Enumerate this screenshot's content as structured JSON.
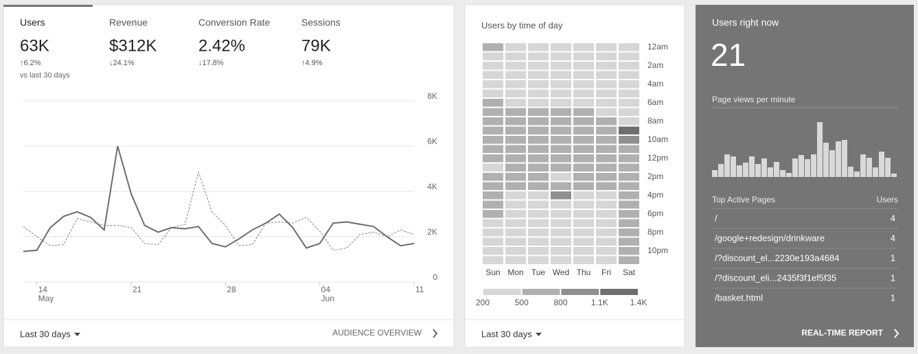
{
  "overview": {
    "tabs": [
      {
        "label": "Users",
        "value": "63K",
        "change": "↑6.2%"
      },
      {
        "label": "Revenue",
        "value": "$312K",
        "change": "↓24.1%"
      },
      {
        "label": "Conversion Rate",
        "value": "2.42%",
        "change": "↓17.8%"
      },
      {
        "label": "Sessions",
        "value": "79K",
        "change": "↑4.9%"
      }
    ],
    "comparison": "vs last 30 days",
    "chart": {
      "type": "line",
      "categories": [
        null,
        "14",
        null,
        null,
        null,
        null,
        null,
        null,
        "21",
        null,
        null,
        null,
        null,
        null,
        null,
        "28",
        null,
        null,
        null,
        null,
        null,
        null,
        "04",
        null,
        null,
        null,
        null,
        null,
        null,
        "11"
      ],
      "month_labels": [
        null,
        "May",
        null,
        null,
        null,
        null,
        null,
        null,
        null,
        null,
        null,
        null,
        null,
        null,
        null,
        null,
        null,
        null,
        null,
        null,
        null,
        null,
        "Jun",
        null,
        null,
        null,
        null,
        null,
        null,
        null
      ],
      "series": [
        {
          "color": "#6b6b6b",
          "style": "solid",
          "values": [
            1350,
            1400,
            2400,
            2900,
            3100,
            2850,
            2300,
            6000,
            3900,
            2500,
            2200,
            2400,
            2350,
            2450,
            1700,
            1550,
            1900,
            2300,
            2600,
            3000,
            2400,
            1500,
            1700,
            2600,
            2650,
            2550,
            2450,
            2000,
            1600,
            1700
          ]
        },
        {
          "color": "#808080",
          "style": "dashed",
          "values": [
            2450,
            2000,
            1600,
            1650,
            2800,
            2650,
            2500,
            2500,
            2400,
            1700,
            1650,
            2400,
            2550,
            4850,
            3100,
            2500,
            1600,
            1650,
            2600,
            2650,
            2600,
            2850,
            2250,
            1400,
            1500,
            2100,
            2200,
            2000,
            2300,
            2100
          ]
        }
      ],
      "ylim": [
        0,
        8000
      ],
      "yticks": [
        0,
        {
          "value": 2000,
          "label": "2K"
        },
        {
          "value": 4000,
          "label": "4K"
        },
        {
          "value": 6000,
          "label": "6K"
        },
        {
          "value": 8000,
          "label": "8K"
        }
      ],
      "grid": true
    },
    "footer": {
      "range": "Last 30 days",
      "link": "AUDIENCE OVERVIEW"
    }
  },
  "time_of_day": {
    "type": "heatmap",
    "title": "Users by time of day",
    "days": [
      "Sun",
      "Mon",
      "Tue",
      "Wed",
      "Thu",
      "Fri",
      "Sat"
    ],
    "hour_labels": [
      "12am",
      null,
      "2am",
      null,
      "4am",
      null,
      "6am",
      null,
      "8am",
      null,
      "10am",
      null,
      "12pm",
      null,
      "2pm",
      null,
      "4pm",
      null,
      "6pm",
      null,
      "8pm",
      null,
      "10pm",
      null
    ],
    "values": [
      [
        650,
        350,
        350,
        350,
        350,
        350,
        350
      ],
      [
        350,
        350,
        350,
        350,
        350,
        350,
        350
      ],
      [
        350,
        350,
        350,
        350,
        350,
        350,
        350
      ],
      [
        350,
        350,
        350,
        350,
        350,
        350,
        350
      ],
      [
        350,
        350,
        350,
        350,
        350,
        350,
        350
      ],
      [
        350,
        350,
        350,
        350,
        350,
        350,
        350
      ],
      [
        650,
        350,
        350,
        350,
        350,
        350,
        350
      ],
      [
        650,
        650,
        650,
        650,
        650,
        350,
        350
      ],
      [
        650,
        650,
        650,
        650,
        650,
        650,
        350
      ],
      [
        650,
        650,
        650,
        650,
        650,
        650,
        1250
      ],
      [
        650,
        650,
        650,
        650,
        650,
        650,
        950
      ],
      [
        650,
        650,
        650,
        650,
        650,
        650,
        650
      ],
      [
        650,
        650,
        650,
        650,
        650,
        650,
        650
      ],
      [
        350,
        650,
        650,
        650,
        650,
        650,
        650
      ],
      [
        650,
        650,
        650,
        350,
        650,
        650,
        650
      ],
      [
        650,
        650,
        650,
        650,
        650,
        650,
        650
      ],
      [
        650,
        350,
        350,
        950,
        350,
        350,
        650
      ],
      [
        650,
        350,
        350,
        350,
        350,
        350,
        650
      ],
      [
        650,
        350,
        350,
        350,
        350,
        350,
        650
      ],
      [
        350,
        350,
        350,
        350,
        350,
        350,
        650
      ],
      [
        350,
        350,
        350,
        350,
        350,
        350,
        650
      ],
      [
        350,
        350,
        350,
        350,
        350,
        350,
        650
      ],
      [
        350,
        350,
        350,
        350,
        350,
        350,
        650
      ],
      [
        350,
        350,
        350,
        350,
        350,
        350,
        650
      ]
    ],
    "legend": {
      "colors": [
        "#d6d6d6",
        "#b0b0b0",
        "#8f8f8f",
        "#6e6e6e"
      ],
      "ticks": [
        200,
        500,
        800,
        {
          "value": 1100,
          "label": "1.1K"
        },
        {
          "value": 1400,
          "label": "1.4K"
        }
      ]
    },
    "footer": {
      "range": "Last 30 days"
    }
  },
  "realtime": {
    "title": "Users right now",
    "value": 21,
    "chart": {
      "type": "bar",
      "title": "Page views per minute",
      "color": "#d9d9d9",
      "values": [
        10,
        19,
        33,
        30,
        17,
        21,
        30,
        19,
        27,
        14,
        22,
        10,
        6,
        27,
        32,
        26,
        33,
        80,
        50,
        39,
        52,
        54,
        15,
        8,
        33,
        28,
        14,
        37,
        28,
        5
      ]
    },
    "table": {
      "header": [
        "Top Active Pages",
        "Users"
      ],
      "rows": [
        [
          "/",
          4
        ],
        [
          "/google+redesign/drinkware",
          4
        ],
        [
          "/?discount_el...2230e193a4684",
          1
        ],
        [
          "/?discount_eli...2435f3f1ef5f35",
          1
        ],
        [
          "/basket.html",
          1
        ]
      ]
    },
    "link": "REAL-TIME REPORT"
  }
}
